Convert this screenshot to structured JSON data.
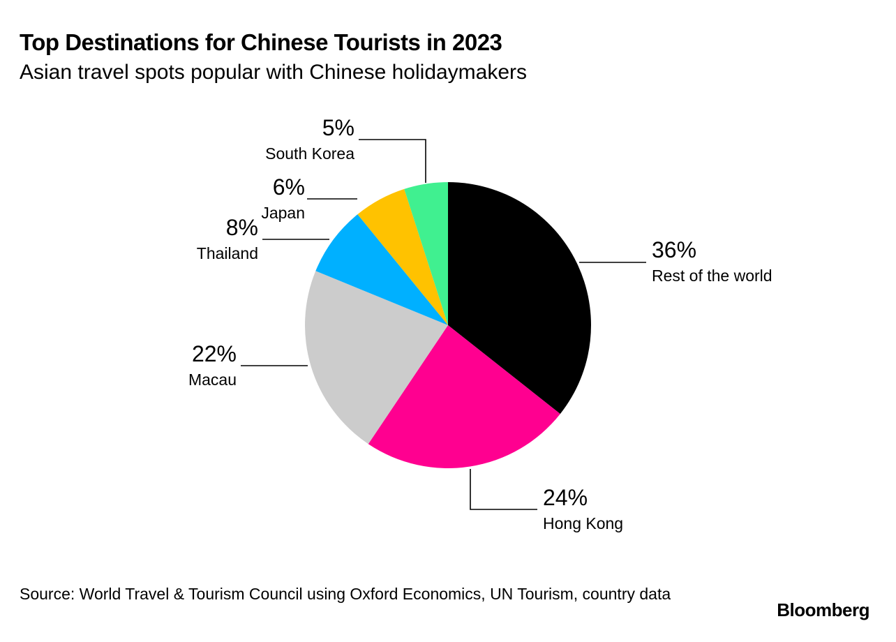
{
  "title": "Top Destinations for Chinese Tourists in 2023",
  "subtitle": "Asian travel spots popular with Chinese holidaymakers",
  "source": "Source: World Travel & Tourism Council using Oxford Economics, UN Tourism, country data",
  "brand": "Bloomberg",
  "chart_data": {
    "type": "pie",
    "title": "Top Destinations for Chinese Tourists in 2023",
    "subtitle": "Asian travel spots popular with Chinese holidaymakers",
    "legend": "none",
    "slices": [
      {
        "label": "Rest of the world",
        "value": 36,
        "value_label": "36%",
        "color": "#000000"
      },
      {
        "label": "Hong Kong",
        "value": 24,
        "value_label": "24%",
        "color": "#ff0090"
      },
      {
        "label": "Macau",
        "value": 22,
        "value_label": "22%",
        "color": "#cccccc"
      },
      {
        "label": "Thailand",
        "value": 8,
        "value_label": "8%",
        "color": "#00b0ff"
      },
      {
        "label": "Japan",
        "value": 6,
        "value_label": "6%",
        "color": "#ffc200"
      },
      {
        "label": "South Korea",
        "value": 5,
        "value_label": "5%",
        "color": "#40f090"
      }
    ]
  }
}
